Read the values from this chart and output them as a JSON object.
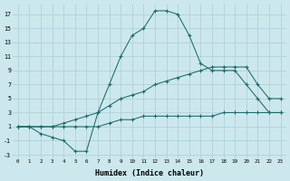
{
  "background_color": "#cce8ec",
  "grid_color": "#aacdd4",
  "line_color": "#1a6b6b",
  "xlabel": "Humidex (Indice chaleur)",
  "xlim": [
    -0.5,
    23.5
  ],
  "ylim": [
    -3.5,
    18.5
  ],
  "xticks": [
    0,
    1,
    2,
    3,
    4,
    5,
    6,
    7,
    8,
    9,
    10,
    11,
    12,
    13,
    14,
    15,
    16,
    17,
    18,
    19,
    20,
    21,
    22,
    23
  ],
  "yticks": [
    -3,
    -1,
    1,
    3,
    5,
    7,
    9,
    11,
    13,
    15,
    17
  ],
  "curve_main_x": [
    0,
    1,
    2,
    3,
    4,
    5,
    6,
    7,
    8,
    9,
    10,
    11,
    12,
    13,
    14,
    15,
    16,
    17,
    18,
    19,
    20,
    21,
    22,
    23
  ],
  "curve_main_y": [
    1,
    1,
    0,
    -0.5,
    -1,
    -2.5,
    -2.5,
    3,
    7,
    11,
    14,
    15,
    17.5,
    17.5,
    17,
    14,
    10,
    9,
    9,
    9,
    7,
    5,
    3,
    3
  ],
  "curve_diag_x": [
    0,
    1,
    2,
    3,
    4,
    5,
    6,
    7,
    8,
    9,
    10,
    11,
    12,
    13,
    14,
    15,
    16,
    17,
    18,
    19,
    20,
    21,
    22,
    23
  ],
  "curve_diag_y": [
    1,
    1,
    1,
    1,
    1.5,
    2,
    2.5,
    3,
    4,
    5,
    5.5,
    6,
    7,
    7.5,
    8,
    8.5,
    9,
    9.5,
    9.5,
    9.5,
    9.5,
    7,
    5,
    5
  ],
  "curve_flat_x": [
    0,
    1,
    2,
    3,
    4,
    5,
    6,
    7,
    8,
    9,
    10,
    11,
    12,
    13,
    14,
    15,
    16,
    17,
    18,
    19,
    20,
    21,
    22,
    23
  ],
  "curve_flat_y": [
    1,
    1,
    1,
    1,
    1,
    1,
    1,
    1,
    1.5,
    2,
    2,
    2.5,
    2.5,
    2.5,
    2.5,
    2.5,
    2.5,
    2.5,
    3,
    3,
    3,
    3,
    3,
    3
  ]
}
